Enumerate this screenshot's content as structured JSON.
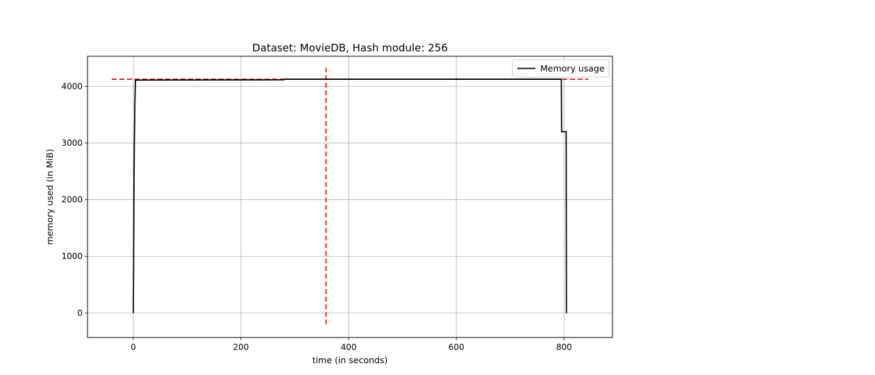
{
  "chart_data": {
    "type": "line",
    "title": "Dataset: MovieDB, Hash module: 256",
    "xlabel": "time (in seconds)",
    "ylabel": "memory used (in MiB)",
    "xlim": [
      -85,
      890
    ],
    "ylim": [
      -430,
      4530
    ],
    "xticks": [
      0,
      200,
      400,
      600,
      800
    ],
    "yticks": [
      0,
      1000,
      2000,
      3000,
      4000
    ],
    "grid": true,
    "legend_position": "top-right",
    "series": [
      {
        "name": "Memory usage",
        "color": "#000000",
        "style": "solid",
        "points": [
          [
            0,
            0
          ],
          [
            0.5,
            600
          ],
          [
            1,
            1600
          ],
          [
            1.5,
            2500
          ],
          [
            2,
            3000
          ],
          [
            3,
            3700
          ],
          [
            4,
            4110
          ],
          [
            280,
            4115
          ],
          [
            281,
            4125
          ],
          [
            750,
            4125
          ],
          [
            795,
            4125
          ],
          [
            795.5,
            3200
          ],
          [
            804,
            3200
          ],
          [
            804.5,
            0
          ]
        ]
      }
    ],
    "reference_lines": [
      {
        "orientation": "horizontal",
        "y": 4125,
        "x_start": -40,
        "x_end": 845,
        "color": "#dd0000",
        "style": "dashed"
      },
      {
        "orientation": "vertical",
        "x": 358,
        "y_start": -200,
        "y_end": 4330,
        "color": "#dd0000",
        "style": "dashed"
      }
    ]
  }
}
